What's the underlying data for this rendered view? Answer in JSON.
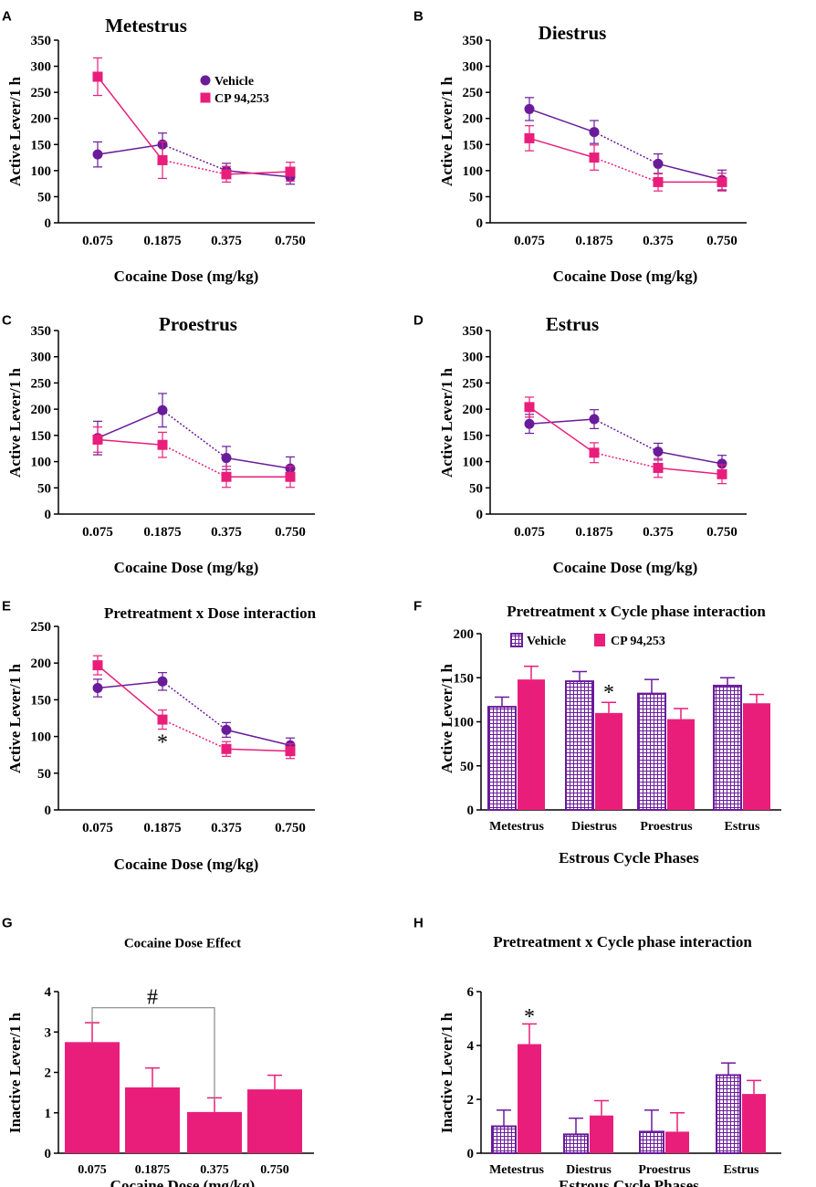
{
  "figure": {
    "colors": {
      "vehicle": "#6a1b9a",
      "cp": "#e91e7b"
    },
    "legend": {
      "vehicle": "Vehicle",
      "cp": "CP 94,253"
    }
  },
  "chart_data": [
    {
      "panel": "A",
      "type": "line",
      "title": "Metestrus",
      "xlabel": "Cocaine Dose (mg/kg)",
      "ylabel": "Active Lever/1 h",
      "categories": [
        "0.075",
        "0.1875",
        "0.375",
        "0.750"
      ],
      "ylim": [
        0,
        350
      ],
      "yticks": [
        0,
        50,
        100,
        150,
        200,
        250,
        300,
        350
      ],
      "legend": true,
      "series": [
        {
          "name": "Vehicle",
          "values": [
            131,
            150,
            100,
            88
          ],
          "errors": [
            24,
            22,
            14,
            14
          ]
        },
        {
          "name": "CP 94,253",
          "values": [
            280,
            120,
            93,
            98
          ],
          "errors": [
            36,
            35,
            15,
            18
          ]
        }
      ],
      "annotations": []
    },
    {
      "panel": "B",
      "type": "line",
      "title": "Diestrus",
      "xlabel": "Cocaine Dose (mg/kg)",
      "ylabel": "Active Lever/1 h",
      "categories": [
        "0.075",
        "0.1875",
        "0.375",
        "0.750"
      ],
      "ylim": [
        0,
        350
      ],
      "yticks": [
        0,
        50,
        100,
        150,
        200,
        250,
        300,
        350
      ],
      "series": [
        {
          "name": "Vehicle",
          "values": [
            218,
            174,
            113,
            82
          ],
          "errors": [
            22,
            22,
            19,
            19
          ]
        },
        {
          "name": "CP 94,253",
          "values": [
            162,
            125,
            78,
            78
          ],
          "errors": [
            24,
            24,
            17,
            17
          ]
        }
      ],
      "annotations": []
    },
    {
      "panel": "C",
      "type": "line",
      "title": "Proestrus",
      "xlabel": "Cocaine Dose (mg/kg)",
      "ylabel": "Active Lever/1 h",
      "categories": [
        "0.075",
        "0.1875",
        "0.375",
        "0.750"
      ],
      "ylim": [
        0,
        350
      ],
      "yticks": [
        0,
        50,
        100,
        150,
        200,
        250,
        300,
        350
      ],
      "series": [
        {
          "name": "Vehicle",
          "values": [
            145,
            198,
            107,
            87
          ],
          "errors": [
            32,
            32,
            22,
            22
          ]
        },
        {
          "name": "CP 94,253",
          "values": [
            142,
            132,
            71,
            71
          ],
          "errors": [
            24,
            24,
            20,
            20
          ]
        }
      ],
      "annotations": []
    },
    {
      "panel": "D",
      "type": "line",
      "title": "Estrus",
      "xlabel": "Cocaine Dose (mg/kg)",
      "ylabel": "Active Lever/1 h",
      "categories": [
        "0.075",
        "0.1875",
        "0.375",
        "0.750"
      ],
      "ylim": [
        0,
        350
      ],
      "yticks": [
        0,
        50,
        100,
        150,
        200,
        250,
        300,
        350
      ],
      "series": [
        {
          "name": "Vehicle",
          "values": [
            172,
            181,
            119,
            96
          ],
          "errors": [
            18,
            18,
            16,
            16
          ]
        },
        {
          "name": "CP 94,253",
          "values": [
            204,
            117,
            88,
            76
          ],
          "errors": [
            19,
            19,
            18,
            18
          ]
        }
      ],
      "annotations": []
    },
    {
      "panel": "E",
      "type": "line",
      "title": "Pretreatment x Dose interaction",
      "xlabel": "Cocaine Dose (mg/kg)",
      "ylabel": "Active Lever/1 h",
      "categories": [
        "0.075",
        "0.1875",
        "0.375",
        "0.750"
      ],
      "ylim": [
        0,
        250
      ],
      "yticks": [
        0,
        50,
        100,
        150,
        200,
        250
      ],
      "series": [
        {
          "name": "Vehicle",
          "values": [
            166,
            175,
            109,
            88
          ],
          "errors": [
            12,
            12,
            10,
            10
          ]
        },
        {
          "name": "CP 94,253",
          "values": [
            197,
            123,
            83,
            80
          ],
          "errors": [
            13,
            13,
            10,
            10
          ]
        }
      ],
      "annotations": [
        {
          "text": "*",
          "category": 1,
          "value": 95
        }
      ]
    },
    {
      "panel": "F",
      "type": "bar",
      "title": "Pretreatment x Cycle phase interaction",
      "xlabel": "Estrous Cycle Phases",
      "ylabel": "Active Lever/1 h",
      "categories": [
        "Metestrus",
        "Diestrus",
        "Proestrus",
        "Estrus"
      ],
      "ylim": [
        0,
        200
      ],
      "yticks": [
        0,
        50,
        100,
        150,
        200
      ],
      "legend": true,
      "series": [
        {
          "name": "Vehicle",
          "values": [
            117,
            146,
            132,
            141
          ],
          "errors": [
            11,
            11,
            16,
            9
          ]
        },
        {
          "name": "CP 94,253",
          "values": [
            148,
            110,
            103,
            121
          ],
          "errors": [
            15,
            12,
            12,
            10
          ]
        }
      ],
      "annotations": [
        {
          "text": "*",
          "category": 1,
          "series": 1,
          "value": 136
        }
      ]
    },
    {
      "panel": "G",
      "type": "bar",
      "title": "Cocaine Dose Effect",
      "xlabel": "Cocaine Dose (mg/kg)",
      "ylabel": "Inactive Lever/1 h",
      "categories": [
        "0.075",
        "0.1875",
        "0.375",
        "0.750"
      ],
      "ylim": [
        0,
        4
      ],
      "yticks": [
        0,
        1,
        2,
        3,
        4
      ],
      "series": [
        {
          "name": "CP 94,253",
          "values": [
            2.75,
            1.63,
            1.02,
            1.58
          ],
          "errors": [
            0.48,
            0.48,
            0.35,
            0.35
          ]
        }
      ],
      "annotations": [
        {
          "text": "#",
          "bracket": [
            0,
            2
          ],
          "value": 3.6
        }
      ]
    },
    {
      "panel": "H",
      "type": "bar",
      "title": "Pretreatment x Cycle phase interaction",
      "xlabel": "Estrous Cycle Phases",
      "ylabel": "Inactive Lever/1 h",
      "categories": [
        "Metestrus",
        "Diestrus",
        "Proestrus",
        "Estrus"
      ],
      "ylim": [
        0,
        6
      ],
      "yticks": [
        0,
        2,
        4,
        6
      ],
      "series": [
        {
          "name": "Vehicle",
          "values": [
            1.0,
            0.7,
            0.8,
            2.9
          ],
          "errors": [
            0.6,
            0.6,
            0.8,
            0.45
          ]
        },
        {
          "name": "CP 94,253",
          "values": [
            4.05,
            1.4,
            0.8,
            2.2
          ],
          "errors": [
            0.75,
            0.55,
            0.7,
            0.5
          ]
        }
      ],
      "annotations": [
        {
          "text": "*",
          "category": 0,
          "series": 1,
          "value": 5.15
        }
      ]
    }
  ]
}
